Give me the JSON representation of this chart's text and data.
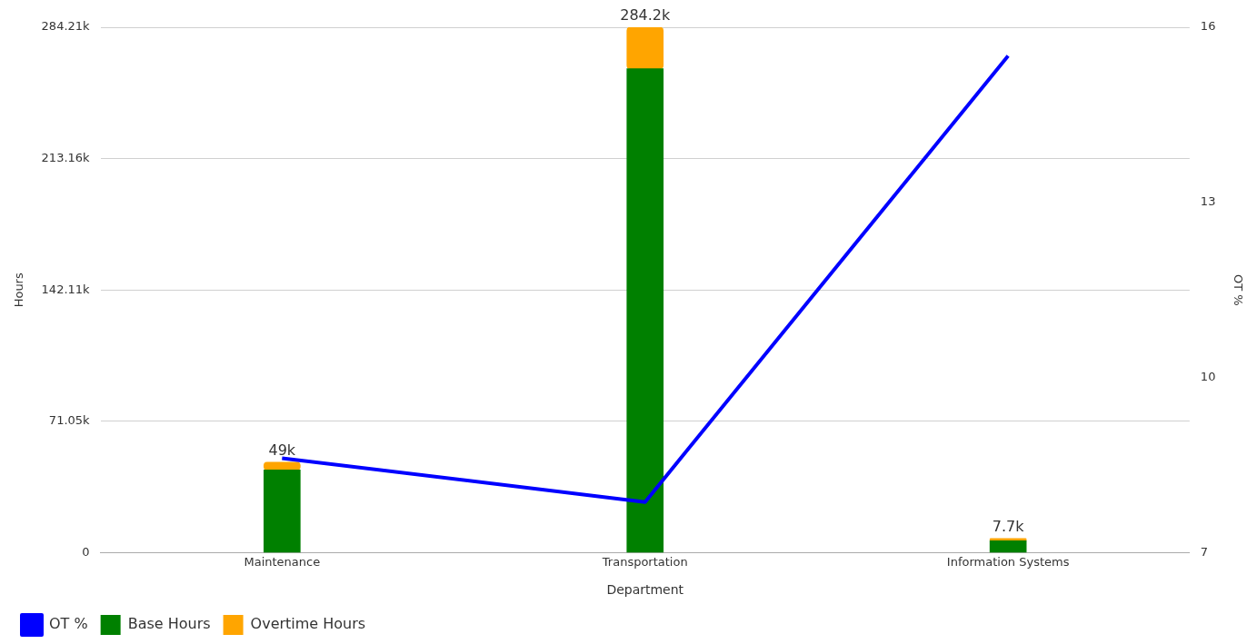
{
  "chart_data": {
    "type": "bar",
    "stacked": true,
    "xlabel": "Department",
    "ylabel": "Hours",
    "y2label": "OT %",
    "categories": [
      "Maintenance",
      "Transportation",
      "Information Systems"
    ],
    "series": [
      {
        "name": "OT %",
        "type": "line",
        "axis": "y2",
        "color": "#0000ff",
        "values": [
          8.62,
          7.87,
          15.51
        ]
      },
      {
        "name": "Base Hours",
        "type": "bar",
        "color": "#008000",
        "values": [
          44800,
          261800,
          6500
        ]
      },
      {
        "name": "Overtime Hours",
        "type": "bar",
        "color": "#ffa500",
        "values": [
          4200,
          22400,
          1200
        ]
      }
    ],
    "totals": [
      "49k",
      "284.2k",
      "7.7k"
    ],
    "ylim": [
      0,
      284210
    ],
    "yticks": [
      0,
      {
        "value": 71052.5,
        "label": "71.05k"
      },
      {
        "value": 142105,
        "label": "142.11k"
      },
      {
        "value": 213157.5,
        "label": "213.16k"
      },
      {
        "value": 284210,
        "label": "284.21k"
      }
    ],
    "y2lim": [
      7,
      16
    ],
    "y2ticks": [
      7,
      10,
      13,
      16
    ],
    "grid": "y",
    "legend": "bottom left",
    "marker": "none"
  }
}
